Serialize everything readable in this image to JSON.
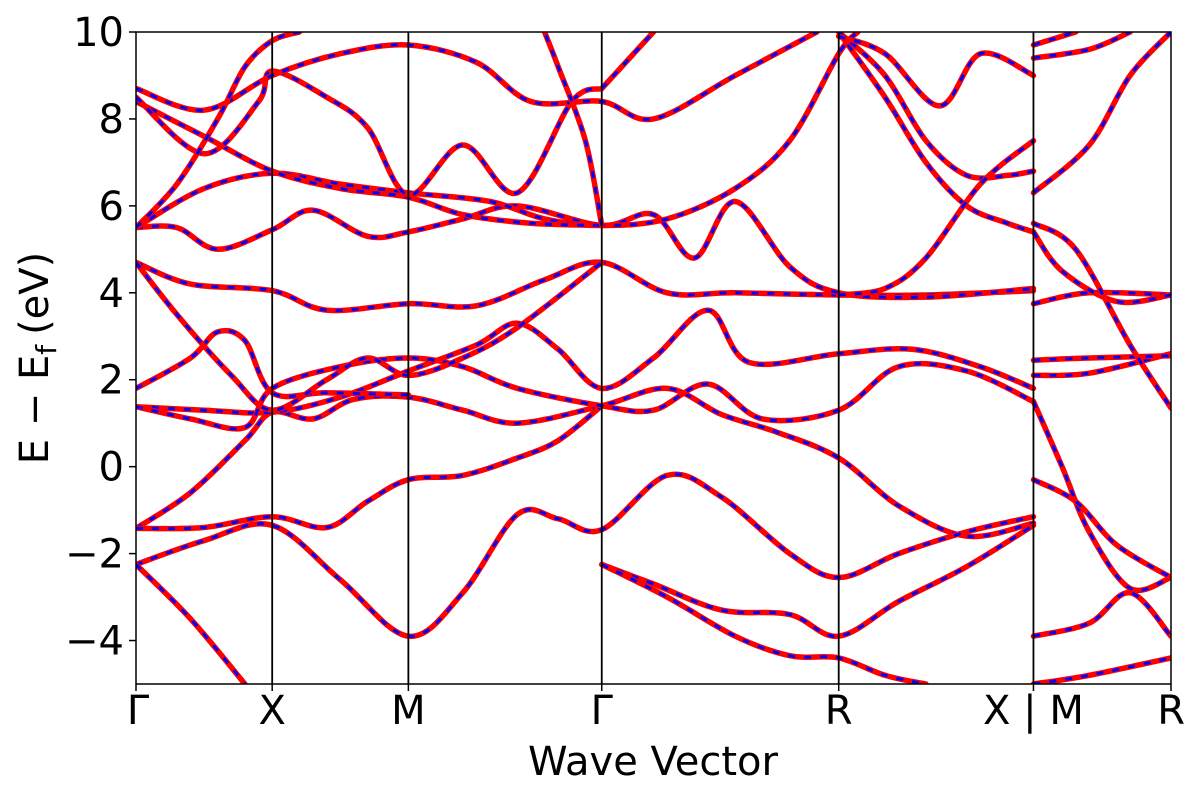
{
  "chart_data": {
    "type": "line",
    "xlabel": "Wave Vector",
    "ylabel": {
      "main": "E − E",
      "subscript": "f",
      "unit": "(eV)"
    },
    "ylim": [
      -5,
      10
    ],
    "yticks": [
      {
        "v": -4,
        "label": "−4"
      },
      {
        "v": -2,
        "label": "−2"
      },
      {
        "v": 0,
        "label": "0"
      },
      {
        "v": 2,
        "label": "2"
      },
      {
        "v": 4,
        "label": "4"
      },
      {
        "v": 6,
        "label": "6"
      },
      {
        "v": 8,
        "label": "8"
      },
      {
        "v": 10,
        "label": "10"
      }
    ],
    "xlim": [
      0,
      7.6
    ],
    "kpoints": [
      {
        "x": 0.0,
        "label": "Γ"
      },
      {
        "x": 1.0,
        "label": "X"
      },
      {
        "x": 2.0,
        "label": "M"
      },
      {
        "x": 3.42,
        "label": "Γ"
      },
      {
        "x": 5.16,
        "label": "R"
      },
      {
        "x": 6.59,
        "label": "X | M"
      },
      {
        "x": 7.6,
        "label": "R"
      }
    ],
    "colors": {
      "dft": "#ff0000",
      "fit": "#0000ff",
      "axes": "#000000"
    },
    "series": [
      {
        "name": "",
        "color": "#ff0000",
        "bands": [
          [
            [
              0.0,
              -1.42
            ],
            [
              0.4,
              -0.6
            ],
            [
              0.8,
              0.6
            ],
            [
              1.0,
              1.25
            ],
            [
              1.3,
              1.1
            ],
            [
              1.6,
              1.55
            ],
            [
              2.0,
              1.6
            ],
            [
              2.4,
              1.3
            ],
            [
              2.8,
              1.0
            ],
            [
              3.42,
              1.4
            ],
            [
              3.9,
              1.8
            ],
            [
              4.3,
              1.2
            ],
            [
              4.7,
              0.8
            ],
            [
              5.16,
              0.2
            ],
            [
              5.6,
              -0.9
            ],
            [
              6.1,
              -1.6
            ],
            [
              6.59,
              -1.3
            ]
          ],
          [
            [
              0.0,
              -1.42
            ],
            [
              0.5,
              -1.4
            ],
            [
              1.0,
              -1.15
            ],
            [
              1.4,
              -1.4
            ],
            [
              1.7,
              -0.8
            ],
            [
              2.0,
              -0.3
            ],
            [
              2.4,
              -0.2
            ],
            [
              2.8,
              0.2
            ],
            [
              3.1,
              0.6
            ],
            [
              3.42,
              1.4
            ]
          ],
          [
            [
              0.0,
              -2.25
            ],
            [
              0.5,
              -1.7
            ],
            [
              1.0,
              -1.35
            ],
            [
              1.5,
              -2.6
            ],
            [
              2.0,
              -3.9
            ],
            [
              2.4,
              -2.9
            ],
            [
              2.8,
              -1.1
            ],
            [
              3.1,
              -1.2
            ],
            [
              3.42,
              -1.45
            ],
            [
              3.9,
              -0.2
            ],
            [
              4.3,
              -0.7
            ],
            [
              4.8,
              -2.0
            ],
            [
              5.16,
              -2.55
            ],
            [
              5.6,
              -2.0
            ],
            [
              6.1,
              -1.5
            ],
            [
              6.59,
              -1.15
            ]
          ],
          [
            [
              0.0,
              -2.25
            ],
            [
              0.4,
              -3.5
            ],
            [
              0.8,
              -5.0
            ]
          ],
          [
            [
              3.42,
              -2.25
            ],
            [
              3.8,
              -2.7
            ],
            [
              4.3,
              -3.3
            ],
            [
              4.8,
              -3.4
            ],
            [
              5.16,
              -3.9
            ],
            [
              5.6,
              -3.1
            ],
            [
              6.1,
              -2.3
            ],
            [
              6.59,
              -1.35
            ]
          ],
          [
            [
              3.42,
              -2.25
            ],
            [
              3.9,
              -3.0
            ],
            [
              4.4,
              -3.9
            ],
            [
              4.8,
              -4.35
            ],
            [
              5.16,
              -4.4
            ],
            [
              5.5,
              -4.8
            ],
            [
              5.8,
              -5.0
            ]
          ],
          [
            [
              0.0,
              1.38
            ],
            [
              0.5,
              1.3
            ],
            [
              1.0,
              1.25
            ],
            [
              1.5,
              1.6
            ],
            [
              2.0,
              2.2
            ],
            [
              2.5,
              2.8
            ],
            [
              2.8,
              3.3
            ],
            [
              3.1,
              2.7
            ],
            [
              3.42,
              1.8
            ],
            [
              3.8,
              2.5
            ],
            [
              4.2,
              3.6
            ],
            [
              4.5,
              2.4
            ],
            [
              5.16,
              2.6
            ],
            [
              5.7,
              2.7
            ],
            [
              6.2,
              2.3
            ],
            [
              6.59,
              1.8
            ]
          ],
          [
            [
              0.0,
              1.8
            ],
            [
              0.4,
              2.5
            ],
            [
              0.6,
              3.1
            ],
            [
              0.8,
              2.9
            ],
            [
              1.0,
              1.7
            ],
            [
              1.4,
              1.7
            ],
            [
              2.0,
              1.65
            ]
          ],
          [
            [
              0.0,
              1.38
            ],
            [
              0.4,
              1.1
            ],
            [
              0.8,
              0.9
            ],
            [
              1.0,
              1.8
            ],
            [
              1.5,
              2.3
            ],
            [
              2.0,
              2.5
            ],
            [
              2.4,
              2.3
            ],
            [
              2.8,
              1.8
            ],
            [
              3.42,
              1.4
            ],
            [
              3.8,
              1.3
            ],
            [
              4.2,
              1.9
            ],
            [
              4.6,
              1.1
            ],
            [
              5.16,
              1.3
            ],
            [
              5.6,
              2.3
            ],
            [
              6.1,
              2.2
            ],
            [
              6.59,
              1.5
            ]
          ],
          [
            [
              0.0,
              4.7
            ],
            [
              0.4,
              4.2
            ],
            [
              1.0,
              4.05
            ],
            [
              1.4,
              3.6
            ],
            [
              2.0,
              3.75
            ],
            [
              2.5,
              3.7
            ],
            [
              3.0,
              4.3
            ],
            [
              3.42,
              4.7
            ],
            [
              3.9,
              4.0
            ],
            [
              4.4,
              4.0
            ],
            [
              5.16,
              3.95
            ],
            [
              5.8,
              3.95
            ],
            [
              6.59,
              4.05
            ]
          ],
          [
            [
              0.0,
              4.7
            ],
            [
              0.3,
              3.5
            ],
            [
              0.7,
              2.1
            ],
            [
              1.0,
              1.3
            ],
            [
              1.4,
              2.0
            ],
            [
              1.7,
              2.5
            ],
            [
              2.0,
              2.1
            ],
            [
              2.4,
              2.5
            ],
            [
              2.8,
              3.2
            ],
            [
              3.42,
              4.7
            ]
          ],
          [
            [
              0.0,
              5.5
            ],
            [
              0.3,
              5.5
            ],
            [
              0.6,
              5.0
            ],
            [
              1.0,
              5.45
            ],
            [
              1.3,
              5.9
            ],
            [
              1.7,
              5.3
            ],
            [
              2.0,
              5.4
            ],
            [
              2.4,
              5.7
            ],
            [
              2.8,
              6.0
            ],
            [
              3.42,
              5.55
            ],
            [
              3.8,
              5.8
            ],
            [
              4.1,
              4.8
            ],
            [
              4.4,
              6.1
            ],
            [
              4.8,
              4.6
            ],
            [
              5.16,
              4.0
            ],
            [
              5.8,
              3.9
            ],
            [
              6.59,
              4.1
            ]
          ],
          [
            [
              0.0,
              5.5
            ],
            [
              0.5,
              6.4
            ],
            [
              1.0,
              6.75
            ],
            [
              1.5,
              6.5
            ],
            [
              2.0,
              6.3
            ],
            [
              2.6,
              6.1
            ],
            [
              3.0,
              5.7
            ],
            [
              3.42,
              5.55
            ],
            [
              3.9,
              5.7
            ],
            [
              4.4,
              6.4
            ],
            [
              4.8,
              7.5
            ],
            [
              5.16,
              9.5
            ],
            [
              5.3,
              10.0
            ]
          ],
          [
            [
              0.0,
              8.4
            ],
            [
              0.5,
              7.6
            ],
            [
              1.0,
              6.8
            ],
            [
              1.5,
              6.4
            ],
            [
              2.0,
              6.2
            ],
            [
              2.4,
              5.8
            ],
            [
              2.9,
              5.6
            ],
            [
              3.42,
              5.55
            ]
          ],
          [
            [
              0.0,
              8.5
            ],
            [
              0.5,
              7.2
            ],
            [
              0.9,
              8.4
            ],
            [
              1.0,
              9.1
            ],
            [
              1.4,
              8.5
            ],
            [
              1.7,
              7.8
            ],
            [
              2.0,
              6.25
            ],
            [
              2.4,
              7.4
            ],
            [
              2.8,
              6.3
            ],
            [
              3.2,
              8.4
            ],
            [
              3.42,
              8.7
            ]
          ],
          [
            [
              0.0,
              8.7
            ],
            [
              0.5,
              8.2
            ],
            [
              1.0,
              9.0
            ],
            [
              1.5,
              9.5
            ],
            [
              2.0,
              9.7
            ],
            [
              2.5,
              9.3
            ],
            [
              2.9,
              8.4
            ],
            [
              3.42,
              8.4
            ],
            [
              3.8,
              8.0
            ],
            [
              4.4,
              9.0
            ],
            [
              5.0,
              10.0
            ]
          ],
          [
            [
              0.0,
              5.5
            ],
            [
              0.3,
              6.5
            ],
            [
              0.6,
              8.0
            ],
            [
              0.8,
              9.2
            ],
            [
              1.0,
              9.8
            ],
            [
              1.2,
              10.0
            ]
          ],
          [
            [
              3.42,
              8.7
            ],
            [
              3.8,
              10.0
            ]
          ],
          [
            [
              3.42,
              5.55
            ],
            [
              3.3,
              7.5
            ],
            [
              3.1,
              9.2
            ],
            [
              3.0,
              10.0
            ]
          ],
          [
            [
              5.16,
              10.0
            ],
            [
              5.5,
              8.5
            ],
            [
              5.8,
              7.0
            ],
            [
              6.1,
              6.0
            ],
            [
              6.4,
              5.6
            ],
            [
              6.59,
              5.4
            ]
          ],
          [
            [
              5.16,
              10.0
            ],
            [
              5.5,
              9.0
            ],
            [
              5.8,
              7.5
            ],
            [
              6.1,
              6.7
            ],
            [
              6.4,
              6.7
            ],
            [
              6.59,
              6.8
            ]
          ],
          [
            [
              5.16,
              9.9
            ],
            [
              5.5,
              9.5
            ],
            [
              5.9,
              8.3
            ],
            [
              6.2,
              9.5
            ],
            [
              6.59,
              9.0
            ]
          ],
          [
            [
              5.16,
              3.95
            ],
            [
              5.5,
              4.1
            ],
            [
              5.8,
              4.8
            ],
            [
              6.2,
              6.5
            ],
            [
              6.59,
              7.5
            ]
          ],
          [
            [
              6.59,
              1.5
            ],
            [
              6.8,
              0.0
            ],
            [
              7.0,
              -1.5
            ],
            [
              7.3,
              -2.8
            ],
            [
              7.6,
              -2.55
            ]
          ],
          [
            [
              6.59,
              -0.3
            ],
            [
              6.9,
              -0.8
            ],
            [
              7.2,
              -1.8
            ],
            [
              7.6,
              -2.55
            ]
          ],
          [
            [
              6.59,
              -3.9
            ],
            [
              7.0,
              -3.6
            ],
            [
              7.3,
              -2.9
            ],
            [
              7.6,
              -3.9
            ]
          ],
          [
            [
              6.59,
              -5.0
            ],
            [
              7.0,
              -4.8
            ],
            [
              7.6,
              -4.4
            ]
          ],
          [
            [
              6.59,
              2.1
            ],
            [
              7.0,
              2.15
            ],
            [
              7.6,
              2.6
            ]
          ],
          [
            [
              6.59,
              2.45
            ],
            [
              7.0,
              2.5
            ],
            [
              7.6,
              2.55
            ]
          ],
          [
            [
              6.59,
              3.75
            ],
            [
              7.0,
              4.0
            ],
            [
              7.6,
              3.95
            ]
          ],
          [
            [
              6.59,
              5.4
            ],
            [
              6.8,
              4.5
            ],
            [
              7.2,
              3.8
            ],
            [
              7.6,
              3.95
            ]
          ],
          [
            [
              6.59,
              5.6
            ],
            [
              6.9,
              5.0
            ],
            [
              7.3,
              2.8
            ],
            [
              7.6,
              1.35
            ]
          ],
          [
            [
              6.59,
              6.3
            ],
            [
              7.0,
              7.4
            ],
            [
              7.3,
              9.0
            ],
            [
              7.6,
              10.0
            ]
          ],
          [
            [
              6.59,
              9.4
            ],
            [
              7.0,
              9.6
            ],
            [
              7.3,
              10.0
            ]
          ],
          [
            [
              6.59,
              9.7
            ],
            [
              6.9,
              10.0
            ]
          ]
        ]
      }
    ]
  }
}
